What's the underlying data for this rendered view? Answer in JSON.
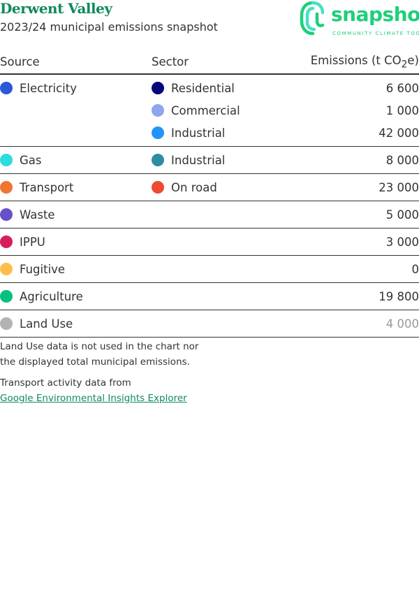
{
  "header": {
    "title": "Derwent Valley",
    "subtitle": "2023/24 municipal emissions snapshot"
  },
  "logo": {
    "word": "snapshot",
    "tagline": "COMMUNITY CLIMATE TOOL",
    "color": "#1dd07a"
  },
  "table": {
    "columns": {
      "source": "Source",
      "sector": "Sector",
      "emissions": "Emissions (t CO",
      "emissions_sub": "2",
      "emissions_end": "e)"
    },
    "rows": [
      {
        "source": "Electricity",
        "source_color": "#2a58d6",
        "sectors": [
          {
            "name": "Residential",
            "color": "#06067a",
            "value": "6 600"
          },
          {
            "name": "Commercial",
            "color": "#8ea6ee",
            "value": "1 000"
          },
          {
            "name": "Industrial",
            "color": "#2196f8",
            "value": "42 000"
          }
        ]
      },
      {
        "source": "Gas",
        "source_color": "#2ddcdc",
        "sectors": [
          {
            "name": "Industrial",
            "color": "#2e8ea0",
            "value": "8 000"
          }
        ]
      },
      {
        "source": "Transport",
        "source_color": "#f07632",
        "sectors": [
          {
            "name": "On road",
            "color": "#ee4a30",
            "value": "23 000"
          }
        ]
      },
      {
        "source": "Waste",
        "source_color": "#6a50c8",
        "value": "5 000"
      },
      {
        "source": "IPPU",
        "source_color": "#d61f5a",
        "value": "3 000"
      },
      {
        "source": "Fugitive",
        "source_color": "#ffbe4c",
        "value": "0"
      },
      {
        "source": "Agriculture",
        "source_color": "#06c07e",
        "value": "19 800"
      },
      {
        "source": "Land Use",
        "source_color": "#b3b3b3",
        "value": "4 000"
      }
    ]
  },
  "notes": {
    "land_use": "Land Use data is not used in the chart nor the displayed total municipal emissions.",
    "transport": "Transport activity data from",
    "link": "Google Environmental Insights Explorer"
  }
}
